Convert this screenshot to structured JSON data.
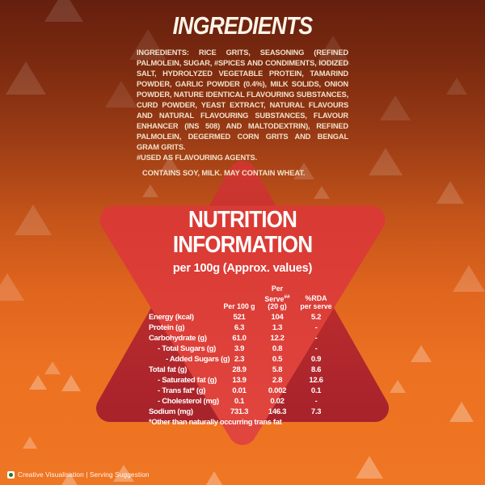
{
  "colors": {
    "background_top": "#651F0E",
    "background_bottom": "#EF7623",
    "star_front_red": "#DB3B34",
    "star_back_red_top": "#CE3730",
    "star_back_red_bottom": "#A9232B",
    "ingredients_text_cream": "#F2E2CB",
    "nutrition_text_white": "#FFFFFF",
    "veg_mark_green": "#1E7B36"
  },
  "ingredients_panel": {
    "title": "INGREDIENTS",
    "body": "INGREDIENTS: RICE GRITS, SEASONING (REFINED PALMOLEIN, SUGAR, #SPICES AND CONDIMENTS, IODIZED SALT, HYDROLYZED VEGETABLE PROTEIN, TAMARIND POWDER, GARLIC POWDER (0.4%), MILK SOLIDS, ONION POWDER, NATURE IDENTICAL FLAVOURING SUBSTANCES, CURD POWDER, YEAST EXTRACT, NATURAL FLAVOURS AND NATURAL FLAVOURING SUBSTANCES, FLAVOUR ENHANCER (INS 508) AND MALTODEXTRIN), REFINED PALMOLEIN, DEGERMED CORN GRITS AND BENGAL GRAM GRITS.",
    "footnote": "#USED AS FLAVOURING AGENTS.",
    "allergen_statement": "CONTAINS SOY, MILK.  MAY CONTAIN WHEAT."
  },
  "nutrition_panel": {
    "title": "NUTRITION INFORMATION",
    "subtitle": "per 100g (Approx. values)",
    "columns": {
      "per_100g": "Per 100 g",
      "per_serve": "Per Serve",
      "per_serve_marker": "##",
      "per_serve_line2": "(20 g)",
      "rda_line1": "%RDA",
      "rda_line2": "per serve"
    },
    "rows": [
      {
        "label": "Energy (kcal)",
        "indent": 0,
        "per_100g": "521",
        "per_serve": "104",
        "rda_per_serve": "5.2"
      },
      {
        "label": "Protein (g)",
        "indent": 0,
        "per_100g": "6.3",
        "per_serve": "1.3",
        "rda_per_serve": "-"
      },
      {
        "label": "Carbohydrate (g)",
        "indent": 0,
        "per_100g": "61.0",
        "per_serve": "12.2",
        "rda_per_serve": "-"
      },
      {
        "label": "- Total Sugars (g)",
        "indent": 1,
        "per_100g": "3.9",
        "per_serve": "0.8",
        "rda_per_serve": "-"
      },
      {
        "label": "- Added Sugars (g)",
        "indent": 2,
        "per_100g": "2.3",
        "per_serve": "0.5",
        "rda_per_serve": "0.9"
      },
      {
        "label": "Total fat (g)",
        "indent": 0,
        "per_100g": "28.9",
        "per_serve": "5.8",
        "rda_per_serve": "8.6"
      },
      {
        "label": "- Saturated fat (g)",
        "indent": 1,
        "per_100g": "13.9",
        "per_serve": "2.8",
        "rda_per_serve": "12.6"
      },
      {
        "label": "- Trans fat* (g)",
        "indent": 1,
        "per_100g": "0.01",
        "per_serve": "0.002",
        "rda_per_serve": "0.1"
      },
      {
        "label": "- Cholesterol (mg)",
        "indent": 1,
        "per_100g": "0.1",
        "per_serve": "0.02",
        "rda_per_serve": "-"
      },
      {
        "label": "Sodium (mg)",
        "indent": 0,
        "per_100g": "731.3",
        "per_serve": "146.3",
        "rda_per_serve": "7.3"
      }
    ],
    "footnote": "*Other than naturally occurring trans fat"
  },
  "footer": {
    "veg_symbol": "vegetarian-mark",
    "caption": "Creative Visualisation | Serving Suggestion"
  }
}
